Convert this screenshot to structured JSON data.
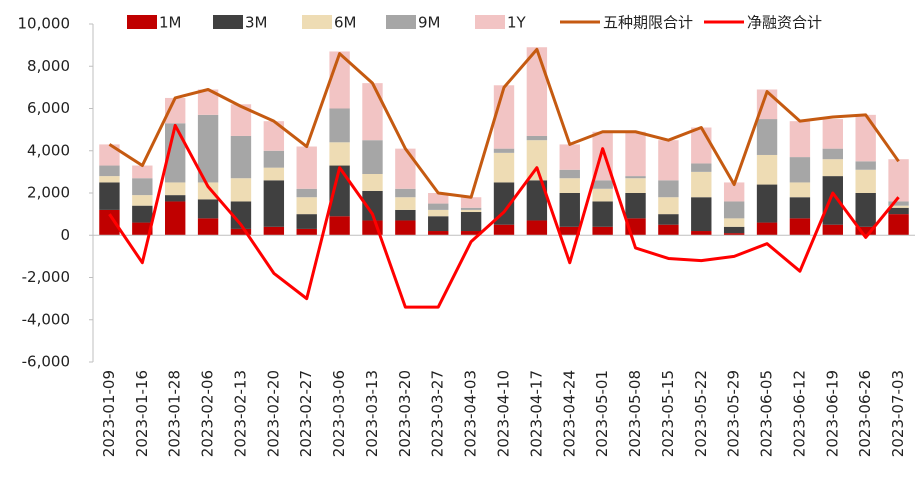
{
  "chart_data": {
    "type": "bar",
    "categories": [
      "2023-01-09",
      "2023-01-16",
      "2023-01-28",
      "2023-02-06",
      "2023-02-13",
      "2023-02-20",
      "2023-02-27",
      "2023-03-06",
      "2023-03-13",
      "2023-03-20",
      "2023-03-27",
      "2023-04-03",
      "2023-04-10",
      "2023-04-17",
      "2023-04-24",
      "2023-05-01",
      "2023-05-08",
      "2023-05-15",
      "2023-05-22",
      "2023-05-29",
      "2023-06-05",
      "2023-06-12",
      "2023-06-19",
      "2023-06-26",
      "2023-07-03"
    ],
    "series": [
      {
        "name": "1M",
        "color": "#c00000",
        "values": [
          1200,
          600,
          1600,
          800,
          300,
          400,
          300,
          900,
          700,
          700,
          200,
          200,
          500,
          700,
          400,
          400,
          800,
          500,
          200,
          100,
          600,
          800,
          500,
          400,
          1000
        ]
      },
      {
        "name": "3M",
        "color": "#404040",
        "values": [
          1300,
          800,
          300,
          900,
          1300,
          2200,
          700,
          2400,
          1400,
          500,
          700,
          900,
          2000,
          1900,
          1600,
          1200,
          1200,
          500,
          1600,
          300,
          1800,
          1000,
          2300,
          1600,
          300
        ]
      },
      {
        "name": "6M",
        "color": "#eedcb4",
        "values": [
          300,
          500,
          600,
          800,
          1100,
          600,
          800,
          1100,
          800,
          600,
          300,
          100,
          1400,
          1900,
          700,
          600,
          700,
          800,
          1200,
          400,
          1400,
          700,
          800,
          1100,
          100
        ]
      },
      {
        "name": "9M",
        "color": "#a6a6a6",
        "values": [
          500,
          800,
          2800,
          3200,
          2000,
          800,
          400,
          1600,
          1600,
          400,
          300,
          100,
          200,
          200,
          400,
          400,
          100,
          800,
          400,
          800,
          1700,
          1200,
          500,
          400,
          200
        ]
      },
      {
        "name": "1Y",
        "color": "#f2c4c4",
        "values": [
          1000,
          600,
          1200,
          1200,
          1500,
          1400,
          2000,
          2700,
          2700,
          1900,
          500,
          500,
          3000,
          4200,
          1200,
          2300,
          2100,
          1900,
          1700,
          900,
          1400,
          1700,
          1400,
          2200,
          2000
        ]
      }
    ],
    "lines": [
      {
        "name": "五种期限合计",
        "color": "#c55a11",
        "values": [
          4300,
          3300,
          6500,
          6900,
          6100,
          5400,
          4200,
          8600,
          7200,
          4100,
          2000,
          1800,
          7000,
          8800,
          4300,
          4900,
          4900,
          4500,
          5100,
          2400,
          6800,
          5400,
          5600,
          5700,
          3500
        ]
      },
      {
        "name": "净融资合计",
        "color": "#ff0000",
        "values": [
          1000,
          -1300,
          5200,
          2300,
          500,
          -1800,
          -3000,
          3200,
          1000,
          -3400,
          -3400,
          -300,
          1100,
          3200,
          -1300,
          4100,
          -600,
          -1100,
          -1200,
          -1000,
          -400,
          -1700,
          2000,
          -100,
          1800
        ]
      }
    ],
    "ylim": [
      -6000,
      10000
    ],
    "yticks": [
      {
        "value": -6000,
        "label": "-6,000"
      },
      {
        "value": -4000,
        "label": "-4,000"
      },
      {
        "value": -2000,
        "label": "-2,000"
      },
      0,
      {
        "value": 2000,
        "label": "2,000"
      },
      {
        "value": 4000,
        "label": "4,000"
      },
      {
        "value": 6000,
        "label": "6,000"
      },
      {
        "value": 8000,
        "label": "8,000"
      },
      {
        "value": 10000,
        "label": "10,000"
      }
    ],
    "grid": false
  }
}
